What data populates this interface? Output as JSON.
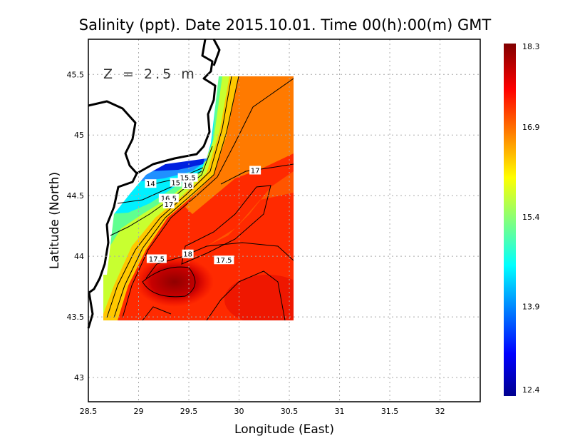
{
  "chart_data": {
    "type": "heatmap",
    "title": "Salinity (ppt). Date 2015.10.01. Time 00(h):00(m)  GMT",
    "xlabel": "Longitude (East)",
    "ylabel": "Latitude (North)",
    "depth_label": "Z = 2.5 m",
    "xlim": [
      28.5,
      32.4
    ],
    "ylim": [
      42.8,
      45.79
    ],
    "xticks": [
      "28.5",
      "29",
      "29.5",
      "30",
      "30.5",
      "31",
      "31.5",
      "32"
    ],
    "yticks": [
      "43",
      "43.5",
      "44",
      "44.5",
      "45",
      "45.5"
    ],
    "grid": true,
    "colorbar": {
      "min": 12.4,
      "max": 18.3,
      "ticks": [
        "18.3",
        "16.9",
        "15.4",
        "13.9",
        "12.4"
      ],
      "tick_values": [
        18.3,
        16.9,
        15.4,
        13.9,
        12.4
      ],
      "colormap": [
        "#00008f",
        "#0000ff",
        "#00ffff",
        "#ffff00",
        "#ff0000",
        "#800000"
      ]
    },
    "data_extent": {
      "lon": [
        28.64,
        30.53
      ],
      "lat": [
        43.48,
        45.49
      ]
    },
    "contour_labels": [
      {
        "text": "17",
        "lon": 30.16,
        "lat": 44.71
      },
      {
        "text": "14",
        "lon": 29.12,
        "lat": 44.6
      },
      {
        "text": "15.5",
        "lon": 29.49,
        "lat": 44.65
      },
      {
        "text": "15",
        "lon": 29.37,
        "lat": 44.61
      },
      {
        "text": "16",
        "lon": 29.49,
        "lat": 44.59
      },
      {
        "text": "16.5",
        "lon": 29.3,
        "lat": 44.48
      },
      {
        "text": "17",
        "lon": 29.3,
        "lat": 44.43
      },
      {
        "text": "17.5",
        "lon": 29.18,
        "lat": 43.98
      },
      {
        "text": "18",
        "lon": 29.49,
        "lat": 44.02
      },
      {
        "text": "17.5",
        "lon": 29.85,
        "lat": 43.97
      }
    ]
  }
}
